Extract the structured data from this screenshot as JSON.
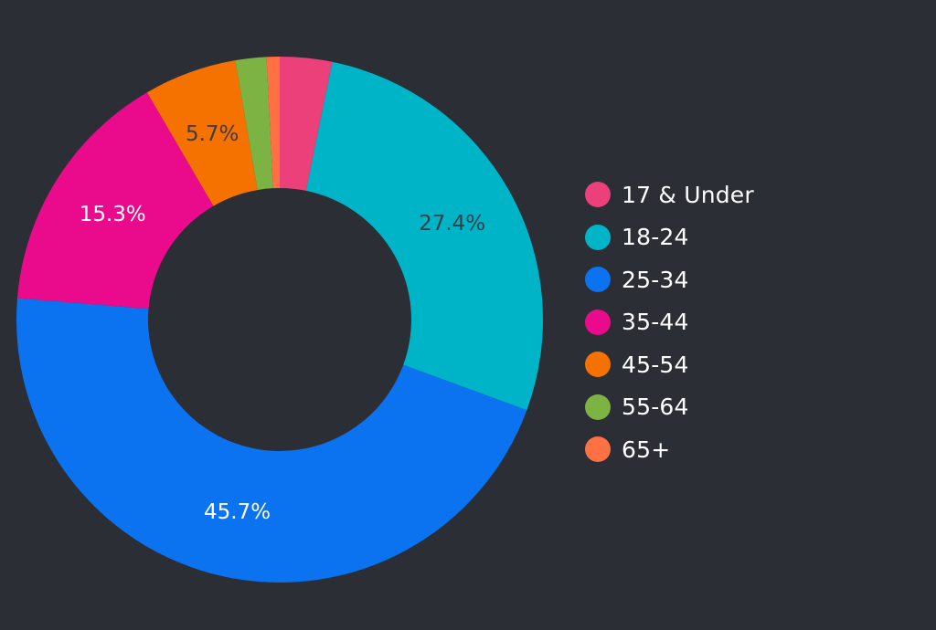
{
  "chart_data": {
    "type": "pie",
    "donut": true,
    "categories": [
      "17 & Under",
      "18-24",
      "25-34",
      "35-44",
      "45-54",
      "55-64",
      "65+"
    ],
    "values": [
      3.2,
      27.4,
      45.7,
      15.3,
      5.7,
      1.9,
      0.8
    ],
    "data_labels": [
      "",
      "27.4%",
      "45.7%",
      "15.3%",
      "5.7%",
      "",
      ""
    ],
    "label_colors": [
      "#ffffff",
      "#3a3d46",
      "#ffffff",
      "#ffffff",
      "#3a3d46",
      "#ffffff",
      "#ffffff"
    ],
    "colors": [
      "#ec407a",
      "#00b4c8",
      "#0b72f0",
      "#ea0b8c",
      "#f57200",
      "#7cb342",
      "#ff7043"
    ],
    "legend_position": "right",
    "background": "#2c2e36"
  }
}
